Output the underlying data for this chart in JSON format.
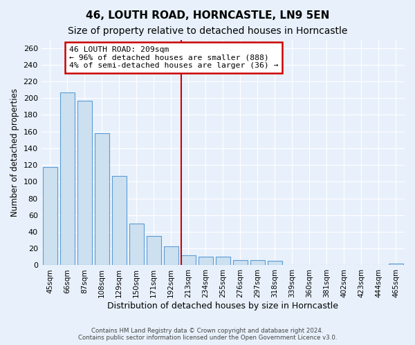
{
  "title": "46, LOUTH ROAD, HORNCASTLE, LN9 5EN",
  "subtitle": "Size of property relative to detached houses in Horncastle",
  "xlabel": "Distribution of detached houses by size in Horncastle",
  "ylabel": "Number of detached properties",
  "bar_labels": [
    "45sqm",
    "66sqm",
    "87sqm",
    "108sqm",
    "129sqm",
    "150sqm",
    "171sqm",
    "192sqm",
    "213sqm",
    "234sqm",
    "255sqm",
    "276sqm",
    "297sqm",
    "318sqm",
    "339sqm",
    "360sqm",
    "381sqm",
    "402sqm",
    "423sqm",
    "444sqm",
    "465sqm"
  ],
  "bar_values": [
    118,
    207,
    197,
    158,
    107,
    50,
    35,
    23,
    12,
    10,
    10,
    6,
    6,
    5,
    0,
    0,
    0,
    0,
    0,
    0,
    2
  ],
  "bar_color": "#cce0f0",
  "bar_edge_color": "#5b9bd5",
  "vline_color": "#cc0000",
  "vline_index": 8,
  "annotation_title": "46 LOUTH ROAD: 209sqm",
  "annotation_line1": "← 96% of detached houses are smaller (888)",
  "annotation_line2": "4% of semi-detached houses are larger (36) →",
  "annotation_box_color": "#ffffff",
  "annotation_box_edge": "#cc0000",
  "ylim": [
    0,
    270
  ],
  "yticks": [
    0,
    20,
    40,
    60,
    80,
    100,
    120,
    140,
    160,
    180,
    200,
    220,
    240,
    260
  ],
  "footer1": "Contains HM Land Registry data © Crown copyright and database right 2024.",
  "footer2": "Contains public sector information licensed under the Open Government Licence v3.0.",
  "bg_color": "#e8f1fb",
  "grid_color": "#ffffff",
  "title_fontsize": 11,
  "subtitle_fontsize": 10
}
